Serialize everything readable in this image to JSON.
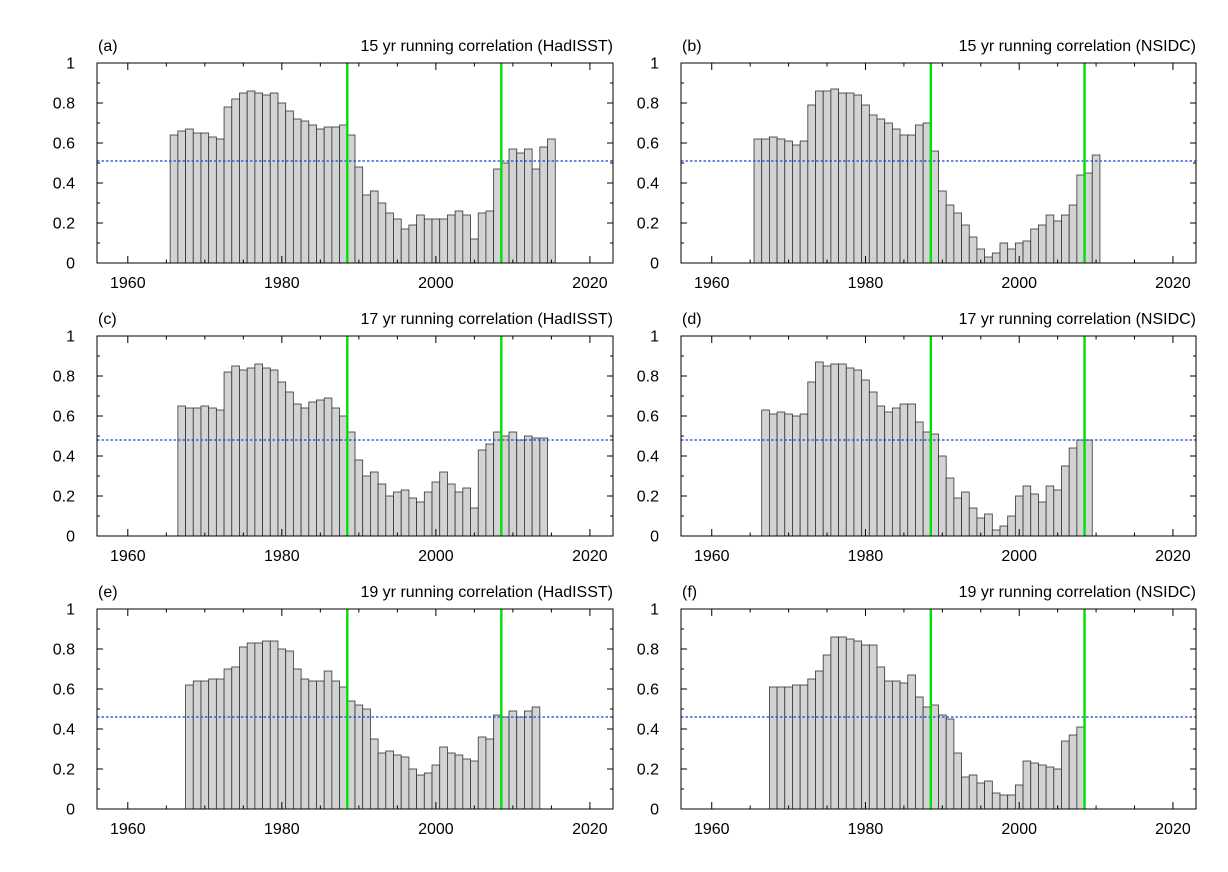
{
  "colors": {
    "bar_fill": "#d3d3d3",
    "bar_stroke": "#333333",
    "reference_line": "#00e000",
    "threshold_line": "#1f3fd6",
    "axis": "#000000"
  },
  "panels": [
    {
      "label": "(a)",
      "title": "15 yr running correlation (HadISST)",
      "chart_data": {
        "type": "bar",
        "xlim": [
          1956,
          2023
        ],
        "ylim": [
          0,
          1
        ],
        "xticks": [
          1960,
          1980,
          2000,
          2020
        ],
        "yticks": [
          0,
          0.2,
          0.4,
          0.6,
          0.8,
          1
        ],
        "x": [
          1966,
          1967,
          1968,
          1969,
          1970,
          1971,
          1972,
          1973,
          1974,
          1975,
          1976,
          1977,
          1978,
          1979,
          1980,
          1981,
          1982,
          1983,
          1984,
          1985,
          1986,
          1987,
          1988,
          1989,
          1990,
          1991,
          1992,
          1993,
          1994,
          1995,
          1996,
          1997,
          1998,
          1999,
          2000,
          2001,
          2002,
          2003,
          2004,
          2005,
          2006,
          2007,
          2008,
          2009,
          2010,
          2011,
          2012,
          2013,
          2014,
          2015
        ],
        "values": [
          0.64,
          0.66,
          0.67,
          0.65,
          0.65,
          0.63,
          0.62,
          0.78,
          0.82,
          0.85,
          0.86,
          0.85,
          0.84,
          0.85,
          0.8,
          0.76,
          0.72,
          0.71,
          0.69,
          0.67,
          0.68,
          0.68,
          0.69,
          0.64,
          0.48,
          0.34,
          0.36,
          0.3,
          0.25,
          0.22,
          0.17,
          0.19,
          0.24,
          0.22,
          0.22,
          0.22,
          0.24,
          0.26,
          0.24,
          0.12,
          0.25,
          0.26,
          0.47,
          0.5,
          0.57,
          0.55,
          0.57,
          0.47,
          0.58,
          0.62
        ],
        "threshold": 0.51,
        "vlines": [
          1988.5,
          2008.5
        ]
      }
    },
    {
      "label": "(b)",
      "title": "15 yr running correlation (NSIDC)",
      "chart_data": {
        "type": "bar",
        "xlim": [
          1956,
          2023
        ],
        "ylim": [
          0,
          1
        ],
        "xticks": [
          1960,
          1980,
          2000,
          2020
        ],
        "yticks": [
          0,
          0.2,
          0.4,
          0.6,
          0.8,
          1
        ],
        "x": [
          1966,
          1967,
          1968,
          1969,
          1970,
          1971,
          1972,
          1973,
          1974,
          1975,
          1976,
          1977,
          1978,
          1979,
          1980,
          1981,
          1982,
          1983,
          1984,
          1985,
          1986,
          1987,
          1988,
          1989,
          1990,
          1991,
          1992,
          1993,
          1994,
          1995,
          1996,
          1997,
          1998,
          1999,
          2000,
          2001,
          2002,
          2003,
          2004,
          2005,
          2006,
          2007,
          2008,
          2009,
          2010
        ],
        "values": [
          0.62,
          0.62,
          0.63,
          0.62,
          0.61,
          0.59,
          0.61,
          0.79,
          0.86,
          0.86,
          0.87,
          0.85,
          0.85,
          0.84,
          0.79,
          0.74,
          0.72,
          0.7,
          0.67,
          0.64,
          0.64,
          0.69,
          0.7,
          0.56,
          0.36,
          0.29,
          0.25,
          0.19,
          0.13,
          0.07,
          0.03,
          0.05,
          0.1,
          0.07,
          0.1,
          0.11,
          0.17,
          0.19,
          0.24,
          0.21,
          0.24,
          0.29,
          0.44,
          0.45,
          0.54
        ],
        "threshold": 0.51,
        "vlines": [
          1988.5,
          2008.5
        ]
      }
    },
    {
      "label": "(c)",
      "title": "17 yr running correlation (HadISST)",
      "chart_data": {
        "type": "bar",
        "xlim": [
          1956,
          2023
        ],
        "ylim": [
          0,
          1
        ],
        "xticks": [
          1960,
          1980,
          2000,
          2020
        ],
        "yticks": [
          0,
          0.2,
          0.4,
          0.6,
          0.8,
          1
        ],
        "x": [
          1967,
          1968,
          1969,
          1970,
          1971,
          1972,
          1973,
          1974,
          1975,
          1976,
          1977,
          1978,
          1979,
          1980,
          1981,
          1982,
          1983,
          1984,
          1985,
          1986,
          1987,
          1988,
          1989,
          1990,
          1991,
          1992,
          1993,
          1994,
          1995,
          1996,
          1997,
          1998,
          1999,
          2000,
          2001,
          2002,
          2003,
          2004,
          2005,
          2006,
          2007,
          2008,
          2009,
          2010,
          2011,
          2012,
          2013,
          2014
        ],
        "values": [
          0.65,
          0.64,
          0.64,
          0.65,
          0.64,
          0.63,
          0.82,
          0.85,
          0.83,
          0.84,
          0.86,
          0.84,
          0.83,
          0.77,
          0.72,
          0.66,
          0.64,
          0.67,
          0.68,
          0.69,
          0.64,
          0.6,
          0.52,
          0.38,
          0.3,
          0.32,
          0.26,
          0.2,
          0.22,
          0.23,
          0.19,
          0.17,
          0.22,
          0.27,
          0.32,
          0.26,
          0.22,
          0.24,
          0.14,
          0.43,
          0.46,
          0.52,
          0.5,
          0.52,
          0.48,
          0.5,
          0.49,
          0.49
        ],
        "threshold": 0.48,
        "vlines": [
          1988.5,
          2008.5
        ]
      }
    },
    {
      "label": "(d)",
      "title": "17 yr running correlation (NSIDC)",
      "chart_data": {
        "type": "bar",
        "xlim": [
          1956,
          2023
        ],
        "ylim": [
          0,
          1
        ],
        "xticks": [
          1960,
          1980,
          2000,
          2020
        ],
        "yticks": [
          0,
          0.2,
          0.4,
          0.6,
          0.8,
          1
        ],
        "x": [
          1967,
          1968,
          1969,
          1970,
          1971,
          1972,
          1973,
          1974,
          1975,
          1976,
          1977,
          1978,
          1979,
          1980,
          1981,
          1982,
          1983,
          1984,
          1985,
          1986,
          1987,
          1988,
          1989,
          1990,
          1991,
          1992,
          1993,
          1994,
          1995,
          1996,
          1997,
          1998,
          1999,
          2000,
          2001,
          2002,
          2003,
          2004,
          2005,
          2006,
          2007,
          2008,
          2009
        ],
        "values": [
          0.63,
          0.61,
          0.62,
          0.61,
          0.6,
          0.61,
          0.77,
          0.87,
          0.85,
          0.86,
          0.86,
          0.84,
          0.83,
          0.78,
          0.72,
          0.65,
          0.62,
          0.64,
          0.66,
          0.66,
          0.57,
          0.52,
          0.51,
          0.4,
          0.29,
          0.19,
          0.22,
          0.14,
          0.09,
          0.11,
          0.03,
          0.05,
          0.1,
          0.2,
          0.25,
          0.21,
          0.17,
          0.25,
          0.23,
          0.35,
          0.44,
          0.48,
          0.48
        ],
        "threshold": 0.48,
        "vlines": [
          1988.5,
          2008.5
        ]
      }
    },
    {
      "label": "(e)",
      "title": "19 yr running correlation (HadISST)",
      "chart_data": {
        "type": "bar",
        "xlim": [
          1956,
          2023
        ],
        "ylim": [
          0,
          1
        ],
        "xticks": [
          1960,
          1980,
          2000,
          2020
        ],
        "yticks": [
          0,
          0.2,
          0.4,
          0.6,
          0.8,
          1
        ],
        "x": [
          1968,
          1969,
          1970,
          1971,
          1972,
          1973,
          1974,
          1975,
          1976,
          1977,
          1978,
          1979,
          1980,
          1981,
          1982,
          1983,
          1984,
          1985,
          1986,
          1987,
          1988,
          1989,
          1990,
          1991,
          1992,
          1993,
          1994,
          1995,
          1996,
          1997,
          1998,
          1999,
          2000,
          2001,
          2002,
          2003,
          2004,
          2005,
          2006,
          2007,
          2008,
          2009,
          2010,
          2011,
          2012,
          2013
        ],
        "values": [
          0.62,
          0.64,
          0.64,
          0.65,
          0.65,
          0.7,
          0.71,
          0.81,
          0.83,
          0.83,
          0.84,
          0.84,
          0.8,
          0.79,
          0.7,
          0.65,
          0.64,
          0.64,
          0.69,
          0.64,
          0.61,
          0.54,
          0.52,
          0.5,
          0.35,
          0.28,
          0.29,
          0.27,
          0.26,
          0.2,
          0.17,
          0.18,
          0.22,
          0.31,
          0.28,
          0.27,
          0.25,
          0.24,
          0.36,
          0.35,
          0.47,
          0.46,
          0.49,
          0.46,
          0.49,
          0.51
        ],
        "threshold": 0.46,
        "vlines": [
          1988.5,
          2008.5
        ]
      }
    },
    {
      "label": "(f)",
      "title": "19 yr running correlation (NSIDC)",
      "chart_data": {
        "type": "bar",
        "xlim": [
          1956,
          2023
        ],
        "ylim": [
          0,
          1
        ],
        "xticks": [
          1960,
          1980,
          2000,
          2020
        ],
        "yticks": [
          0,
          0.2,
          0.4,
          0.6,
          0.8,
          1
        ],
        "x": [
          1968,
          1969,
          1970,
          1971,
          1972,
          1973,
          1974,
          1975,
          1976,
          1977,
          1978,
          1979,
          1980,
          1981,
          1982,
          1983,
          1984,
          1985,
          1986,
          1987,
          1988,
          1989,
          1990,
          1991,
          1992,
          1993,
          1994,
          1995,
          1996,
          1997,
          1998,
          1999,
          2000,
          2001,
          2002,
          2003,
          2004,
          2005,
          2006,
          2007,
          2008
        ],
        "values": [
          0.61,
          0.61,
          0.61,
          0.62,
          0.62,
          0.65,
          0.69,
          0.77,
          0.86,
          0.86,
          0.85,
          0.84,
          0.82,
          0.82,
          0.71,
          0.64,
          0.64,
          0.63,
          0.67,
          0.56,
          0.51,
          0.52,
          0.47,
          0.45,
          0.28,
          0.16,
          0.17,
          0.13,
          0.14,
          0.08,
          0.07,
          0.07,
          0.12,
          0.24,
          0.23,
          0.22,
          0.21,
          0.2,
          0.34,
          0.37,
          0.41
        ],
        "threshold": 0.46,
        "vlines": [
          1988.5,
          2008.5
        ]
      }
    }
  ]
}
